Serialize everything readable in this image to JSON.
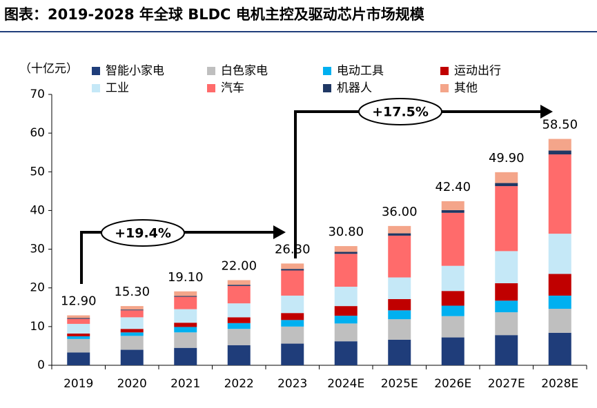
{
  "chart_data": {
    "type": "stacked_bar",
    "title": "图表：2019-2028 年全球 BLDC 电机主控及驱动芯片市场规模",
    "unit_label": "（十亿元）",
    "categories": [
      "2019",
      "2020",
      "2021",
      "2022",
      "2023",
      "2024E",
      "2025E",
      "2026E",
      "2027E",
      "2028E"
    ],
    "series": [
      {
        "name": "智能小家电",
        "color": "#1f3d7a",
        "values": [
          3.3,
          4.0,
          4.5,
          5.2,
          5.6,
          6.2,
          6.6,
          7.2,
          7.8,
          8.4
        ]
      },
      {
        "name": "白色家电",
        "color": "#bfbfbf",
        "values": [
          3.5,
          3.6,
          4.0,
          4.2,
          4.4,
          4.6,
          5.3,
          5.5,
          5.9,
          6.2
        ]
      },
      {
        "name": "电动工具",
        "color": "#00b0f0",
        "values": [
          0.7,
          0.9,
          1.4,
          1.5,
          1.7,
          2.0,
          2.3,
          2.7,
          3.0,
          3.4
        ]
      },
      {
        "name": "运动出行",
        "color": "#c00000",
        "values": [
          0.7,
          0.9,
          1.1,
          1.5,
          1.8,
          2.5,
          2.9,
          3.8,
          4.5,
          5.6
        ]
      },
      {
        "name": "工业",
        "color": "#c5e8f7",
        "values": [
          2.5,
          3.0,
          3.5,
          3.6,
          4.5,
          5.0,
          5.6,
          6.5,
          8.3,
          10.4
        ]
      },
      {
        "name": "汽车",
        "color": "#ff6b6b",
        "values": [
          1.3,
          1.8,
          3.2,
          4.5,
          6.5,
          8.5,
          10.8,
          13.7,
          16.8,
          20.5
        ]
      },
      {
        "name": "机器人",
        "color": "#203864",
        "values": [
          0.2,
          0.2,
          0.2,
          0.3,
          0.4,
          0.5,
          0.6,
          0.7,
          0.8,
          1.0
        ]
      },
      {
        "name": "其他",
        "color": "#f4a58a",
        "values": [
          0.7,
          0.9,
          1.2,
          1.2,
          1.4,
          1.5,
          1.9,
          2.3,
          2.8,
          3.0
        ]
      }
    ],
    "totals": [
      12.9,
      15.3,
      19.1,
      22.0,
      26.3,
      30.8,
      36.0,
      42.4,
      49.9,
      58.5
    ],
    "total_labels": [
      "12.90",
      "15.30",
      "19.10",
      "22.00",
      "26.30",
      "30.80",
      "36.00",
      "42.40",
      "49.90",
      "58.50"
    ],
    "ylim": [
      0,
      70
    ],
    "yticks": [
      0,
      10,
      20,
      30,
      40,
      50,
      60,
      70
    ],
    "annotations": [
      {
        "text": "+19.4%"
      },
      {
        "text": "+17.5%"
      }
    ]
  }
}
